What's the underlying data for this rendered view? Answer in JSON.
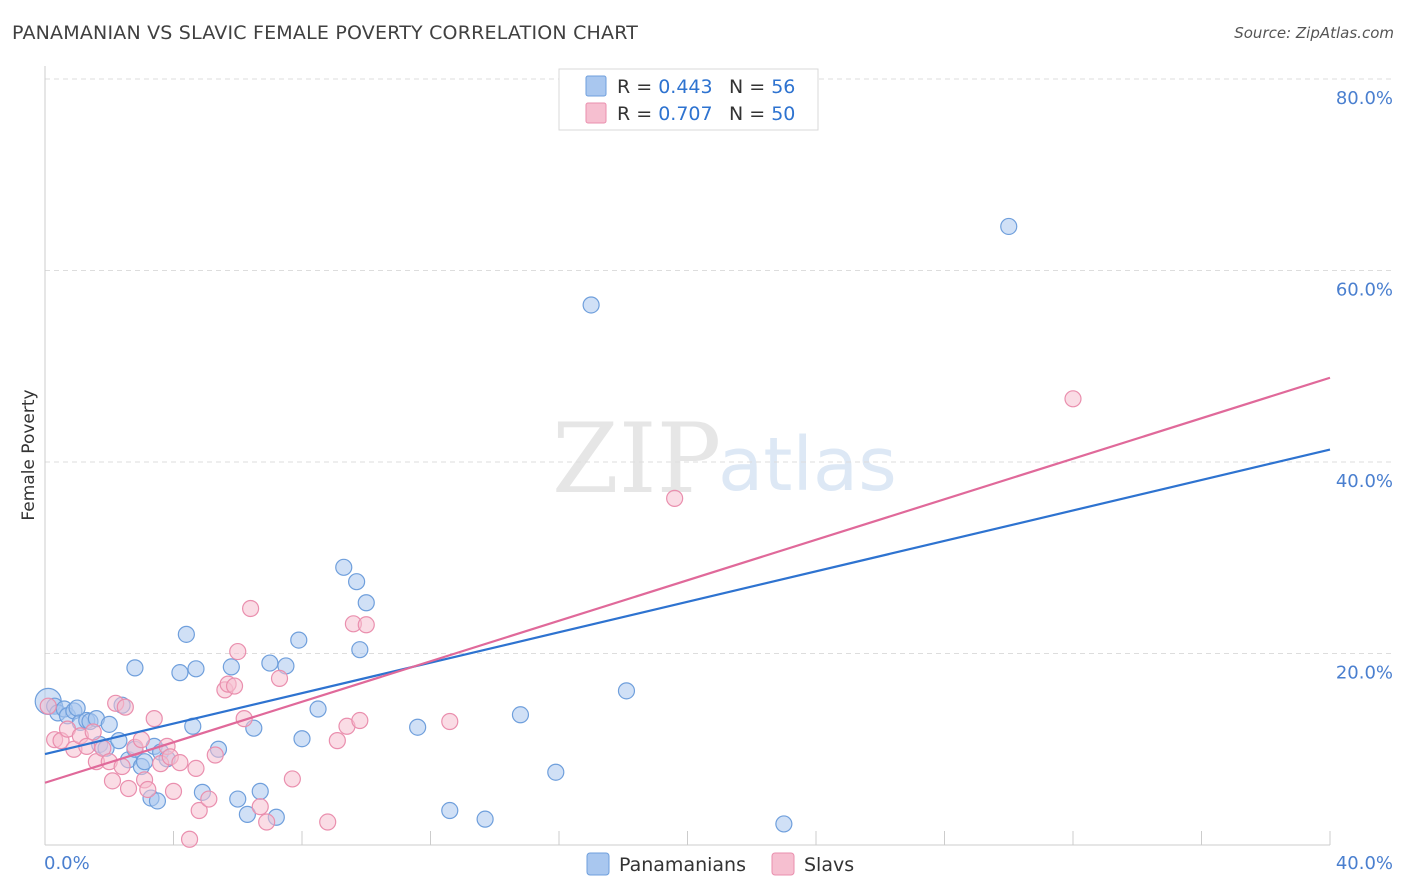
{
  "header": {
    "title": "PANAMANIAN VS SLAVIC FEMALE POVERTY CORRELATION CHART",
    "source": "Source: ZipAtlas.com"
  },
  "watermark": {
    "zip": "ZIP",
    "atlas": "atlas"
  },
  "colors": {
    "panamanian_fill": "#a9c7ef",
    "panamanian_stroke": "#6f9fdc",
    "panamanian_line": "#2e73d0",
    "slav_fill": "#f6bfd0",
    "slav_stroke": "#ea8fae",
    "slav_line": "#e0699a",
    "axis_text": "#4a7fcf",
    "grid": "#dddddd"
  },
  "legend": {
    "rows": [
      {
        "r_label": "R = ",
        "r_value": "0.443",
        "n_label": "N = ",
        "n_value": "56"
      },
      {
        "r_label": "R = ",
        "r_value": "0.707",
        "n_label": "N = ",
        "n_value": "50"
      }
    ]
  },
  "bottom_legend": {
    "items": [
      "Panamanians",
      "Slavs"
    ]
  },
  "chart_data": {
    "type": "scatter",
    "title": "PANAMANIAN VS SLAVIC FEMALE POVERTY CORRELATION CHART",
    "xlabel": "",
    "ylabel": "Female Poverty",
    "xlim": [
      0,
      40
    ],
    "ylim": [
      0,
      80
    ],
    "x_tick_labels": [
      "0.0%",
      "40.0%"
    ],
    "y_ticks": [
      20,
      40,
      60,
      80
    ],
    "y_tick_labels": [
      "20.0%",
      "40.0%",
      "60.0%",
      "80.0%"
    ],
    "grid": "horizontal dashed",
    "legend_placement": "top-center",
    "series": [
      {
        "name": "Panamanians",
        "r": 0.443,
        "n": 56,
        "trend": {
          "x": [
            0,
            40
          ],
          "y": [
            9.5,
            41.3
          ]
        },
        "points": [
          [
            0.1,
            15.0
          ],
          [
            0.3,
            14.5
          ],
          [
            0.4,
            13.8
          ],
          [
            0.6,
            14.2
          ],
          [
            0.7,
            13.5
          ],
          [
            0.9,
            14.0
          ],
          [
            1.1,
            12.8
          ],
          [
            1.3,
            13.0
          ],
          [
            1.4,
            12.9
          ],
          [
            1.6,
            13.2
          ],
          [
            1.7,
            10.5
          ],
          [
            1.9,
            10.1
          ],
          [
            2.0,
            12.6
          ],
          [
            2.3,
            10.9
          ],
          [
            2.4,
            14.6
          ],
          [
            2.6,
            8.9
          ],
          [
            2.8,
            10.0
          ],
          [
            3.0,
            8.2
          ],
          [
            3.1,
            8.7
          ],
          [
            3.3,
            4.9
          ],
          [
            3.4,
            10.3
          ],
          [
            3.6,
            9.7
          ],
          [
            3.8,
            9.0
          ],
          [
            4.2,
            18.0
          ],
          [
            4.4,
            22.0
          ],
          [
            4.6,
            12.4
          ],
          [
            4.7,
            18.4
          ],
          [
            4.9,
            5.5
          ],
          [
            5.4,
            10.0
          ],
          [
            5.8,
            18.6
          ],
          [
            6.0,
            4.8
          ],
          [
            6.3,
            3.2
          ],
          [
            6.5,
            12.2
          ],
          [
            6.7,
            5.6
          ],
          [
            7.0,
            19.0
          ],
          [
            7.2,
            2.9
          ],
          [
            7.5,
            18.7
          ],
          [
            7.9,
            21.4
          ],
          [
            8.0,
            11.1
          ],
          [
            8.5,
            14.2
          ],
          [
            9.3,
            29.0
          ],
          [
            9.7,
            27.5
          ],
          [
            9.8,
            20.4
          ],
          [
            10.0,
            25.3
          ],
          [
            11.6,
            12.3
          ],
          [
            12.6,
            3.6
          ],
          [
            13.7,
            2.7
          ],
          [
            14.8,
            13.6
          ],
          [
            15.9,
            7.6
          ],
          [
            17.0,
            56.4
          ],
          [
            18.1,
            16.1
          ],
          [
            23.0,
            2.2
          ],
          [
            30.0,
            64.6
          ],
          [
            2.8,
            18.5
          ],
          [
            1.0,
            14.3
          ],
          [
            3.5,
            4.6
          ]
        ]
      },
      {
        "name": "Slavs",
        "r": 0.707,
        "n": 50,
        "trend": {
          "x": [
            0,
            40
          ],
          "y": [
            6.5,
            48.8
          ]
        },
        "points": [
          [
            0.1,
            14.5
          ],
          [
            0.3,
            11.0
          ],
          [
            0.5,
            10.9
          ],
          [
            0.7,
            12.1
          ],
          [
            0.9,
            10.0
          ],
          [
            1.1,
            11.4
          ],
          [
            1.3,
            10.3
          ],
          [
            1.5,
            11.8
          ],
          [
            1.6,
            8.7
          ],
          [
            1.8,
            10.1
          ],
          [
            2.0,
            8.7
          ],
          [
            2.1,
            6.7
          ],
          [
            2.2,
            14.8
          ],
          [
            2.4,
            8.2
          ],
          [
            2.5,
            14.4
          ],
          [
            2.6,
            5.9
          ],
          [
            2.8,
            10.2
          ],
          [
            3.0,
            11.0
          ],
          [
            3.1,
            6.8
          ],
          [
            3.2,
            5.8
          ],
          [
            3.4,
            13.2
          ],
          [
            3.6,
            8.5
          ],
          [
            3.8,
            10.3
          ],
          [
            3.9,
            9.2
          ],
          [
            4.0,
            5.6
          ],
          [
            4.2,
            8.6
          ],
          [
            4.5,
            0.6
          ],
          [
            4.7,
            8.0
          ],
          [
            4.8,
            3.6
          ],
          [
            5.1,
            4.8
          ],
          [
            5.3,
            9.4
          ],
          [
            5.6,
            16.2
          ],
          [
            5.7,
            16.8
          ],
          [
            5.9,
            16.6
          ],
          [
            6.0,
            20.2
          ],
          [
            6.2,
            13.2
          ],
          [
            6.4,
            24.7
          ],
          [
            6.7,
            4.0
          ],
          [
            6.9,
            2.4
          ],
          [
            7.3,
            17.4
          ],
          [
            7.7,
            6.9
          ],
          [
            8.8,
            2.4
          ],
          [
            9.1,
            10.9
          ],
          [
            9.4,
            12.4
          ],
          [
            9.6,
            23.1
          ],
          [
            9.8,
            13.0
          ],
          [
            10.0,
            23.0
          ],
          [
            12.6,
            12.9
          ],
          [
            19.6,
            36.2
          ],
          [
            32.0,
            46.6
          ]
        ]
      }
    ]
  }
}
